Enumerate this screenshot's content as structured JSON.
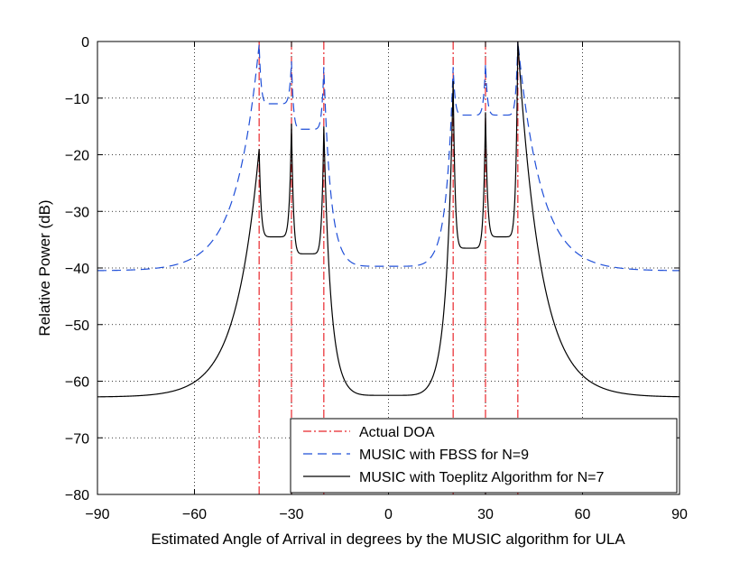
{
  "chart_data": {
    "type": "line",
    "title": "",
    "xlabel": "Estimated Angle of Arrival in degrees by the MUSIC algorithm for ULA",
    "ylabel": "Relative Power (dB)",
    "xlim": [
      -90,
      90
    ],
    "ylim": [
      -80,
      0
    ],
    "xticks": [
      -90,
      -60,
      -30,
      0,
      30,
      60,
      90
    ],
    "xtick_labels": [
      "−90",
      "−60",
      "−30",
      "0",
      "30",
      "60",
      "90"
    ],
    "yticks": [
      0,
      -10,
      -20,
      -30,
      -40,
      -50,
      -60,
      -70,
      -80
    ],
    "ytick_labels": [
      "0",
      "−10",
      "−20",
      "−30",
      "−40",
      "−50",
      "−60",
      "−70",
      "−80"
    ],
    "grid": true,
    "legend_location": "bottom-right",
    "actual_doa": [
      -40,
      -30,
      -20,
      20,
      30,
      40
    ],
    "series": [
      {
        "name": "Actual DOA",
        "style": "dash-dot",
        "color": "#e8262b"
      },
      {
        "name": "MUSIC with FBSS for N=9",
        "style": "dashed",
        "color": "#1f4fd8",
        "peaks": [
          {
            "angle": -40,
            "db": -0.5
          },
          {
            "angle": -30,
            "db": -3.5
          },
          {
            "angle": -20,
            "db": -4.5
          },
          {
            "angle": 20,
            "db": -4.5
          },
          {
            "angle": 30,
            "db": -4.0
          },
          {
            "angle": 40,
            "db": 0
          }
        ],
        "valleys": [
          {
            "angle": -35,
            "db": -11
          },
          {
            "angle": -25,
            "db": -15.5
          },
          {
            "angle": 0,
            "db": -39.7
          },
          {
            "angle": 25,
            "db": -13
          },
          {
            "angle": 35,
            "db": -13
          }
        ],
        "endpoint_db": -40.5
      },
      {
        "name": "MUSIC with Toeplitz Algorithm for N=7",
        "style": "solid",
        "color": "#000000",
        "peaks": [
          {
            "angle": -40,
            "db": -19
          },
          {
            "angle": -30,
            "db": -14.5
          },
          {
            "angle": -20,
            "db": -15
          },
          {
            "angle": 20,
            "db": -7
          },
          {
            "angle": 30,
            "db": -12.5
          },
          {
            "angle": 40,
            "db": 0
          }
        ],
        "valleys": [
          {
            "angle": -35,
            "db": -34.5
          },
          {
            "angle": -25,
            "db": -37.5
          },
          {
            "angle": 0,
            "db": -62.5
          },
          {
            "angle": 25,
            "db": -36.5
          },
          {
            "angle": 35,
            "db": -34.5
          }
        ],
        "endpoint_db": -62.8
      }
    ]
  }
}
